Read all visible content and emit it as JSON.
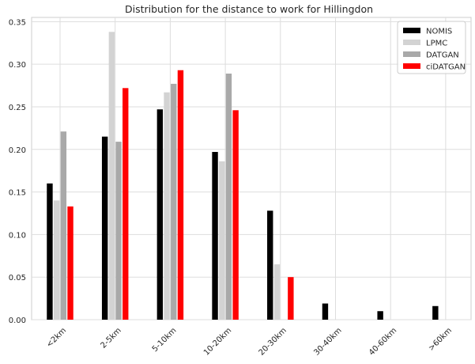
{
  "chart_data": {
    "type": "bar",
    "title": "Distribution for the distance to work for Hillingdon",
    "xlabel": "",
    "ylabel": "",
    "categories": [
      "<2km",
      "2-5km",
      "5-10km",
      "10-20km",
      "20-30km",
      "30-40km",
      "40-60km",
      ">60km"
    ],
    "ylim": [
      0,
      0.355
    ],
    "yticks": [
      0.0,
      0.05,
      0.1,
      0.15,
      0.2,
      0.25,
      0.3,
      0.35
    ],
    "ytick_labels": [
      "0.00",
      "0.05",
      "0.10",
      "0.15",
      "0.20",
      "0.25",
      "0.30",
      "0.35"
    ],
    "grid": true,
    "legend_position": "top-right",
    "series": [
      {
        "name": "NOMIS",
        "color": "#000000",
        "values": [
          0.16,
          0.215,
          0.247,
          0.197,
          0.128,
          0.019,
          0.01,
          0.016
        ]
      },
      {
        "name": "LPMC",
        "color": "#d3d3d3",
        "values": [
          0.14,
          0.338,
          0.267,
          0.186,
          0.065,
          0.0,
          0.0,
          0.0
        ]
      },
      {
        "name": "DATGAN",
        "color": "#a9a9a9",
        "values": [
          0.221,
          0.209,
          0.277,
          0.289,
          0.0,
          0.0,
          0.0,
          0.0
        ]
      },
      {
        "name": "ciDATGAN",
        "color": "#ff0000",
        "values": [
          0.133,
          0.272,
          0.293,
          0.246,
          0.05,
          0.0,
          0.0,
          0.0
        ]
      }
    ]
  }
}
